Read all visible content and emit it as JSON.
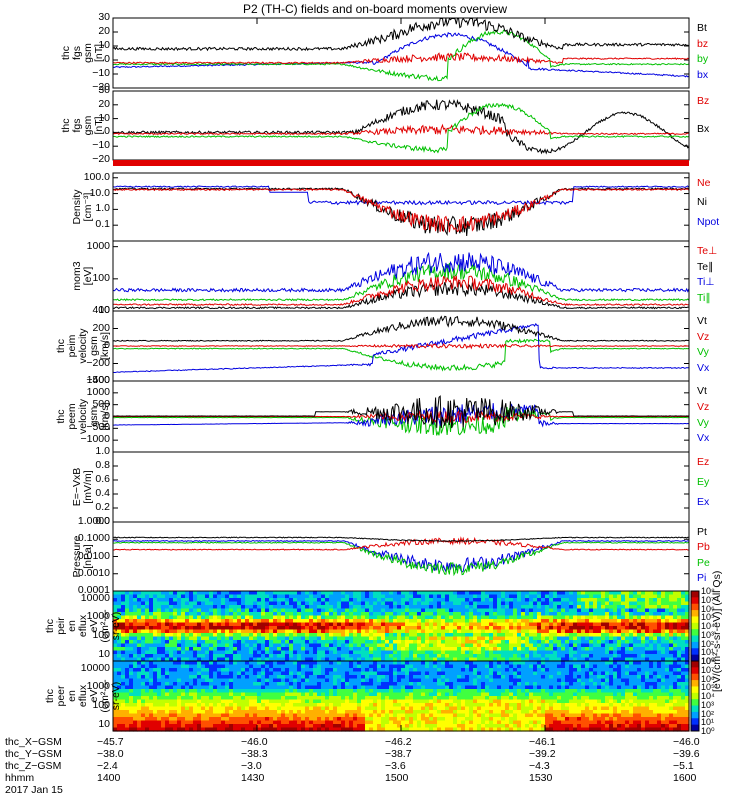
{
  "title": "P2 (TH-C) fields and on-board moments overview",
  "date_label": "2017 Jan 15",
  "chart_data": [
    {
      "type": "line",
      "id": "fgs_gsm",
      "ylabel": "thc\nfgs\ngsm\n[nT]",
      "ylim": [
        -20,
        30
      ],
      "yticks": [
        "30",
        "20",
        "10",
        "0",
        "−10",
        "−20"
      ],
      "series": [
        {
          "name": "Bt",
          "color": "#000000"
        },
        {
          "name": "bz",
          "color": "#e00000"
        },
        {
          "name": "by",
          "color": "#00c000"
        },
        {
          "name": "bx",
          "color": "#0000e0"
        }
      ]
    },
    {
      "type": "line",
      "id": "fgs_dsl",
      "ylabel": "thc\nfgs\ngsm\n[nT]",
      "ylim": [
        -20,
        30
      ],
      "yticks": [
        "30",
        "20",
        "10",
        "0",
        "−10",
        "−20"
      ],
      "series": [
        {
          "name": "Bz",
          "color": "#e00000"
        },
        {
          "name": "Bx",
          "color": "#000000"
        }
      ]
    },
    {
      "type": "line",
      "id": "density",
      "ylabel": "Density\n[cm⁻³]",
      "scale": "log",
      "ylim": [
        0.01,
        200
      ],
      "yticks": [
        "100.0",
        "10.0",
        "1.0",
        "0.1"
      ],
      "series": [
        {
          "name": "Ne",
          "color": "#e00000"
        },
        {
          "name": "Ni",
          "color": "#000000"
        },
        {
          "name": "Npot",
          "color": "#0000e0"
        }
      ]
    },
    {
      "type": "line",
      "id": "temp",
      "ylabel": "mom3\n[eV]",
      "scale": "log",
      "ylim": [
        10,
        1500
      ],
      "yticks": [
        "1000",
        "100",
        "10"
      ],
      "series": [
        {
          "name": "Te⊥",
          "color": "#e00000"
        },
        {
          "name": "Te∥",
          "color": "#000000"
        },
        {
          "name": "Ti⊥",
          "color": "#0000e0"
        },
        {
          "name": "Ti∥",
          "color": "#00c000"
        }
      ]
    },
    {
      "type": "line",
      "id": "peim_vel",
      "ylabel": "thc\npeim\nvelocity\ngsm\n[km/s]",
      "ylim": [
        -400,
        400
      ],
      "yticks": [
        "400",
        "200",
        "0",
        "−200",
        "−400"
      ],
      "series": [
        {
          "name": "Vt",
          "color": "#000000"
        },
        {
          "name": "Vz",
          "color": "#e00000"
        },
        {
          "name": "Vy",
          "color": "#00c000"
        },
        {
          "name": "Vx",
          "color": "#0000e0"
        }
      ]
    },
    {
      "type": "line",
      "id": "peem_vel",
      "ylabel": "thc\npeem\nvelocity\ngsm\n[km/s]",
      "ylim": [
        -1500,
        1500
      ],
      "yticks": [
        "1500",
        "1000",
        "500",
        "0",
        "−500",
        "−1000"
      ],
      "series": [
        {
          "name": "Vt",
          "color": "#000000"
        },
        {
          "name": "Vz",
          "color": "#e00000"
        },
        {
          "name": "Vy",
          "color": "#00c000"
        },
        {
          "name": "Vx",
          "color": "#0000e0"
        }
      ]
    },
    {
      "type": "line",
      "id": "efield",
      "ylabel": "E=−VxB\n[mV/m]",
      "ylim": [
        0,
        1
      ],
      "yticks": [
        "1.0",
        "0.8",
        "0.6",
        "0.4",
        "0.2",
        "0.0"
      ],
      "series": [
        {
          "name": "Ez",
          "color": "#e00000"
        },
        {
          "name": "Ey",
          "color": "#00c000"
        },
        {
          "name": "Ex",
          "color": "#0000e0"
        }
      ]
    },
    {
      "type": "line",
      "id": "pressure",
      "ylabel": "Pressure\n[nPa]",
      "scale": "log",
      "ylim": [
        0.0001,
        1
      ],
      "yticks": [
        "1.0000",
        "0.1000",
        "0.0100",
        "0.0010",
        "0.0001"
      ],
      "series": [
        {
          "name": "Pt",
          "color": "#000000"
        },
        {
          "name": "Pb",
          "color": "#e00000"
        },
        {
          "name": "Pe",
          "color": "#00c000"
        },
        {
          "name": "Pi",
          "color": "#0000e0"
        }
      ]
    },
    {
      "type": "heatmap",
      "id": "peir_spec",
      "ylabel": "thc\npeir\nen\neflux\neV\n(cm²-s-\nsr-eV)",
      "scale": "log",
      "ylim": [
        5,
        25000
      ],
      "yticks": [
        "10000",
        "1000",
        "100",
        "10"
      ]
    },
    {
      "type": "heatmap",
      "id": "peer_spec",
      "ylabel": "thc\npeer\nen\neflux\neV\n(cm²-s-\nsr-eV)",
      "scale": "log",
      "ylim": [
        5,
        25000
      ],
      "yticks": [
        "10000",
        "1000",
        "100",
        "10"
      ]
    }
  ],
  "colorbar": {
    "label": "[eV/(cm²-s-sr-eV)] (All Qs)",
    "ticks": [
      "10⁸",
      "10⁷",
      "10⁶",
      "10⁵",
      "10⁴",
      "10³",
      "10²",
      "10¹",
      "10⁰"
    ],
    "ticks2": [
      "10⁸",
      "10⁷",
      "10⁶",
      "10⁵",
      "10⁴",
      "10³",
      "10²",
      "10¹",
      "10⁰"
    ]
  },
  "xaxis": {
    "rows": [
      {
        "label": "thc_X−GSM",
        "values": [
          "−45.7",
          "−46.0",
          "−46.2",
          "−46.1",
          "−46.0"
        ]
      },
      {
        "label": "thc_Y−GSM",
        "values": [
          "−38.0",
          "−38.3",
          "−38.7",
          "−39.2",
          "−39.6"
        ]
      },
      {
        "label": "thc_Z−GSM",
        "values": [
          "−2.4",
          "−3.0",
          "−3.6",
          "−4.3",
          "−5.1"
        ]
      },
      {
        "label": "hhmm",
        "values": [
          "1400",
          "1430",
          "1500",
          "1530",
          "1600"
        ]
      }
    ]
  }
}
